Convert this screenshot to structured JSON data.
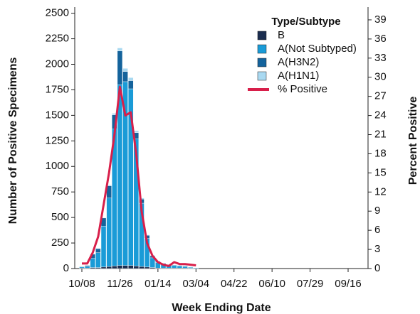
{
  "chart_data": {
    "type": "bar",
    "stacked": true,
    "x_label": "Week Ending Date",
    "y_label": "Number of Positive Specimens",
    "y2_label": "Percent Positive",
    "legend_title": "Type/Subtype",
    "legend": "top-right",
    "categories": [
      "10/08",
      null,
      null,
      null,
      null,
      null,
      null,
      "11/26",
      null,
      null,
      null,
      null,
      null,
      null,
      "01/14",
      null,
      null,
      null,
      null,
      null,
      null,
      "03/04",
      null,
      null,
      null,
      null,
      null,
      null,
      "04/22",
      null,
      null,
      null,
      null,
      null,
      null,
      "06/10",
      null,
      null,
      null,
      null,
      null,
      null,
      "07/29",
      null,
      null,
      null,
      null,
      null,
      null,
      "09/16",
      null,
      null,
      null
    ],
    "series": [
      {
        "name": "B",
        "type": "bar",
        "color": "#1b2d4f",
        "values": [
          5,
          5,
          10,
          10,
          15,
          20,
          25,
          30,
          30,
          30,
          25,
          20,
          15,
          10,
          5,
          5,
          5,
          5,
          5,
          5,
          3,
          2,
          0,
          0,
          0,
          0,
          0,
          0,
          0,
          0,
          0,
          0,
          0,
          0,
          0,
          0,
          0,
          0,
          0,
          0,
          0,
          0,
          0,
          0,
          0,
          0,
          0,
          0,
          0,
          0,
          0,
          0,
          0
        ]
      },
      {
        "name": "A(Not Subtyped)",
        "type": "bar",
        "color": "#1a9bd7",
        "values": [
          10,
          15,
          90,
          145,
          400,
          670,
          1340,
          1770,
          1800,
          1730,
          1245,
          620,
          280,
          95,
          55,
          35,
          30,
          25,
          20,
          15,
          10,
          6,
          0,
          0,
          0,
          0,
          0,
          0,
          0,
          0,
          0,
          0,
          0,
          0,
          0,
          0,
          0,
          0,
          0,
          0,
          0,
          0,
          0,
          0,
          0,
          0,
          0,
          0,
          0,
          0,
          0,
          0,
          0
        ]
      },
      {
        "name": "A(H3N2)",
        "type": "bar",
        "color": "#14639c",
        "values": [
          5,
          10,
          40,
          40,
          80,
          120,
          140,
          330,
          100,
          80,
          60,
          40,
          30,
          20,
          10,
          10,
          5,
          5,
          5,
          5,
          2,
          2,
          0,
          0,
          0,
          0,
          0,
          0,
          0,
          0,
          0,
          0,
          0,
          0,
          0,
          0,
          0,
          0,
          0,
          0,
          0,
          0,
          0,
          0,
          0,
          0,
          0,
          0,
          0,
          0,
          0,
          0,
          0
        ]
      },
      {
        "name": "A(H1N1)",
        "type": "bar",
        "color": "#a9d9f1",
        "values": [
          0,
          0,
          0,
          5,
          5,
          10,
          15,
          30,
          30,
          30,
          20,
          10,
          5,
          5,
          0,
          0,
          0,
          0,
          0,
          0,
          0,
          0,
          0,
          0,
          0,
          0,
          0,
          0,
          0,
          0,
          0,
          0,
          0,
          0,
          0,
          0,
          0,
          0,
          0,
          0,
          0,
          0,
          0,
          0,
          0,
          0,
          0,
          0,
          0,
          0,
          0,
          0,
          0
        ]
      },
      {
        "name": "% Positive",
        "type": "line",
        "axis": "y2",
        "color": "#d81f4a",
        "values": [
          0.8,
          0.8,
          2.5,
          5,
          10,
          15,
          21,
          28.5,
          24,
          24.5,
          18,
          9,
          4,
          2,
          1,
          0.6,
          0.4,
          1,
          0.7,
          0.7,
          0.6,
          0.5,
          null,
          null,
          null,
          null,
          null,
          null,
          null,
          null,
          null,
          null,
          null,
          null,
          null,
          null,
          null,
          null,
          null,
          null,
          null,
          null,
          null,
          null,
          null,
          null,
          null,
          null,
          null,
          null,
          null,
          null,
          null
        ]
      }
    ],
    "ylim": [
      0,
      2560
    ],
    "yticks": [
      0,
      250,
      500,
      750,
      1000,
      1250,
      1500,
      1750,
      2000,
      2250,
      2500
    ],
    "y2lim": [
      0,
      41
    ],
    "y2ticks": [
      0,
      3,
      6,
      9,
      12,
      15,
      18,
      21,
      24,
      27,
      30,
      33,
      36,
      39
    ]
  }
}
